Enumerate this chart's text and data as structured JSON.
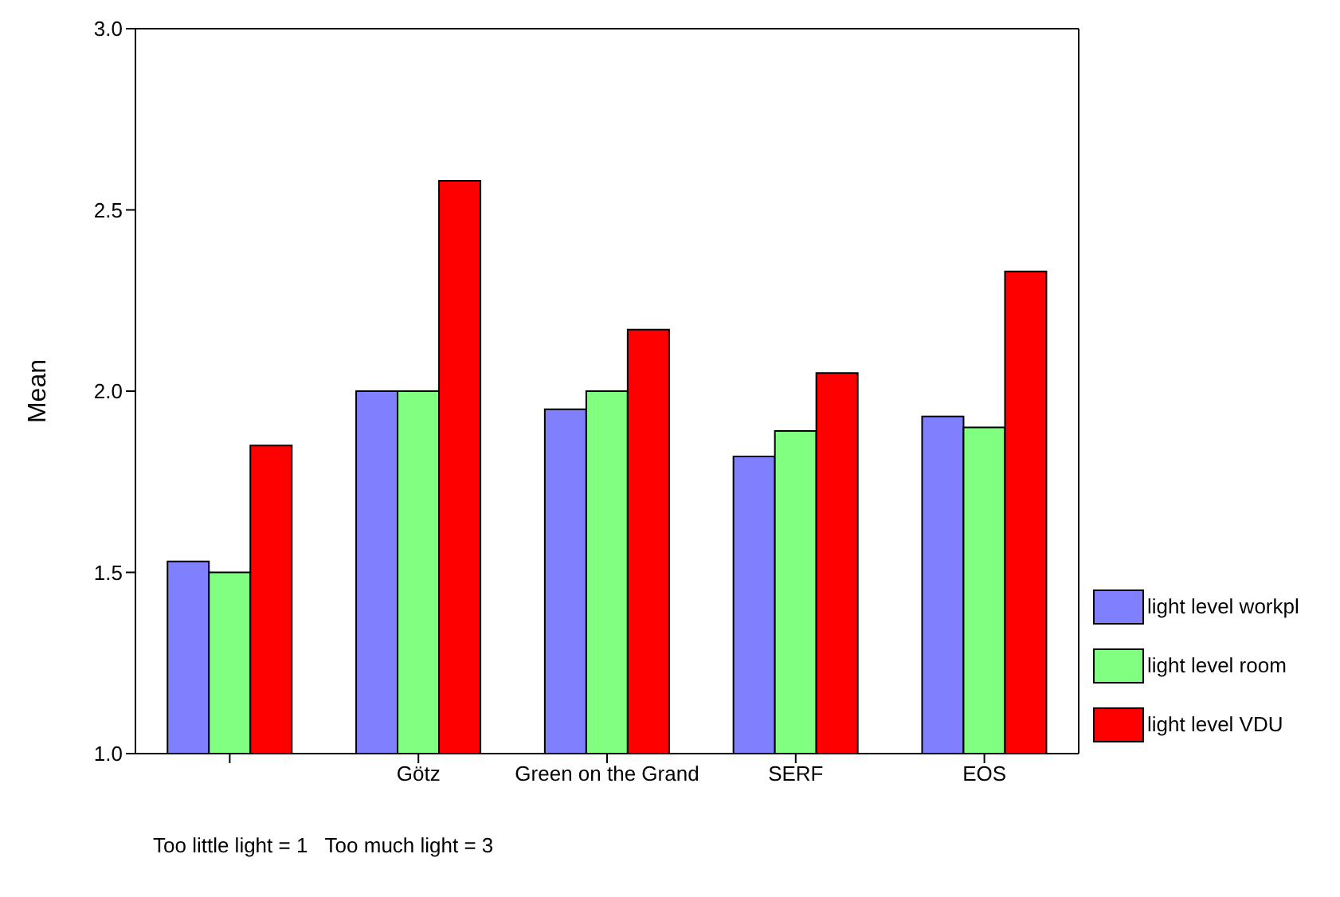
{
  "chart_data": {
    "type": "bar",
    "ylabel": "Mean",
    "categories": [
      null,
      "Götz",
      "Green on the Grand",
      "SERF",
      "EOS"
    ],
    "series": [
      {
        "name": "light level workpl",
        "color": "#8080ff",
        "values": [
          1.53,
          2.0,
          1.95,
          1.82,
          1.93
        ]
      },
      {
        "name": "light level room",
        "color": "#80ff80",
        "values": [
          1.5,
          2.0,
          2.0,
          1.89,
          1.9
        ]
      },
      {
        "name": "light level VDU",
        "color": "#ff0000",
        "values": [
          1.85,
          2.58,
          2.17,
          2.05,
          2.33
        ]
      }
    ],
    "ylim": [
      1.0,
      3.0
    ],
    "yticks": [
      {
        "value": 1.0,
        "label": "1.0"
      },
      {
        "value": 1.5,
        "label": "1.5"
      },
      {
        "value": 2.0,
        "label": "2.0"
      },
      {
        "value": 2.5,
        "label": "2.5"
      },
      {
        "value": 3.0,
        "label": "3.0"
      }
    ],
    "legend": "bottom right",
    "annotations": [
      "Too little light = 1   Too much light = 3"
    ]
  }
}
